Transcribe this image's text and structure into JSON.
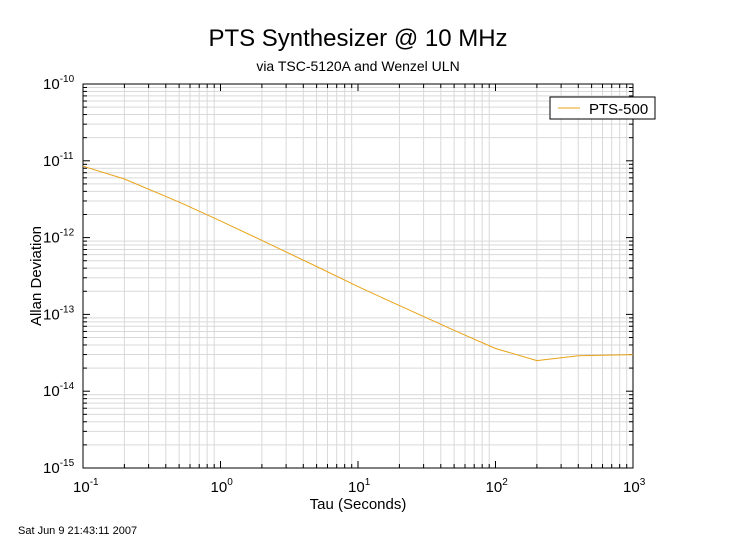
{
  "chart_data": {
    "type": "line",
    "title": "PTS Synthesizer @ 10 MHz",
    "subtitle": "via TSC-5120A and Wenzel ULN",
    "xlabel": "Tau (Seconds)",
    "ylabel": "Allan Deviation",
    "x_scale": "log",
    "y_scale": "log",
    "xlim": [
      0.1,
      1000
    ],
    "ylim": [
      1e-15,
      1e-10
    ],
    "grid": true,
    "legend": "top-right",
    "x_ticks": [
      {
        "base": "10",
        "exp": "-1"
      },
      {
        "base": "10",
        "exp": "0"
      },
      {
        "base": "10",
        "exp": "1"
      },
      {
        "base": "10",
        "exp": "2"
      },
      {
        "base": "10",
        "exp": "3"
      }
    ],
    "y_ticks": [
      {
        "base": "10",
        "exp": "-15"
      },
      {
        "base": "10",
        "exp": "-14"
      },
      {
        "base": "10",
        "exp": "-13"
      },
      {
        "base": "10",
        "exp": "-12"
      },
      {
        "base": "10",
        "exp": "-11"
      },
      {
        "base": "10",
        "exp": "-10"
      }
    ],
    "series": [
      {
        "name": "PTS-500",
        "color": "#e8a317",
        "x": [
          0.1,
          0.2,
          0.5,
          1,
          2,
          5,
          10,
          20,
          50,
          100,
          200,
          400,
          1000
        ],
        "y": [
          8.5e-12,
          5.8e-12,
          2.9e-12,
          1.65e-12,
          9.2e-13,
          4.2e-13,
          2.3e-13,
          1.3e-13,
          6.2e-14,
          3.6e-14,
          2.5e-14,
          2.9e-14,
          3e-14
        ]
      }
    ]
  },
  "timestamp": "Sat Jun  9 21:43:11 2007"
}
